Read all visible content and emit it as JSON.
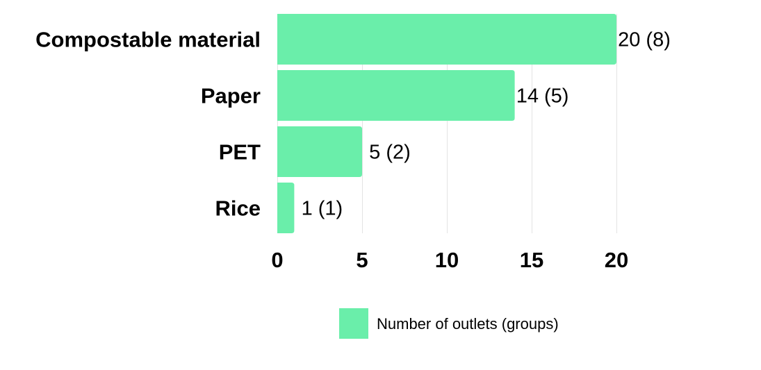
{
  "chart_data": {
    "type": "bar",
    "orientation": "horizontal",
    "categories": [
      "Compostable material",
      "Paper",
      "PET",
      "Rice"
    ],
    "values": [
      20,
      14,
      5,
      1
    ],
    "groups": [
      8,
      5,
      2,
      1
    ],
    "value_labels": [
      "20 (8)",
      "14 (5)",
      "5 (2)",
      "1 (1)"
    ],
    "x_ticks": [
      "0",
      "5",
      "10",
      "15",
      "20"
    ],
    "tick_values": [
      0,
      5,
      10,
      15,
      20
    ],
    "xlim": [
      0,
      20
    ],
    "grid": true,
    "legend": {
      "placement": "bottom",
      "label": "Number of outlets (groups)"
    },
    "colors": {
      "bar": "#6aeeaa",
      "grid": "#e3e3e3",
      "text": "#000000"
    }
  }
}
